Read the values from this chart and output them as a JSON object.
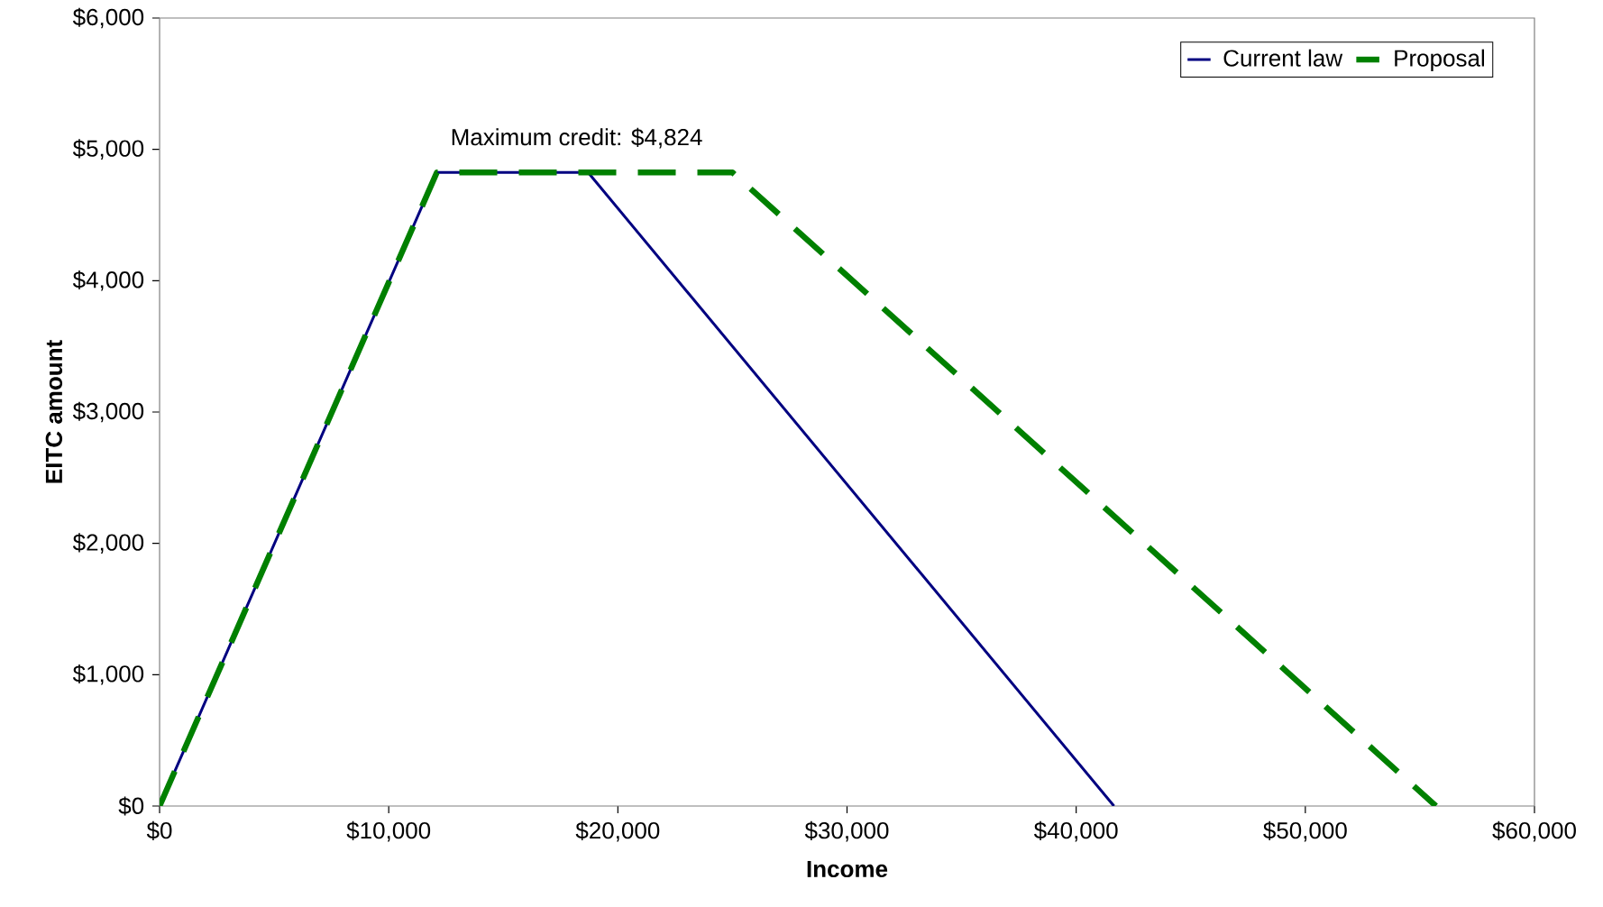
{
  "chart_data": {
    "type": "line",
    "xlabel": "Income",
    "ylabel": "EITC amount",
    "xlim": [
      0,
      60000
    ],
    "ylim": [
      0,
      6000
    ],
    "xticks": [
      {
        "value": 0,
        "label": "$0"
      },
      {
        "value": 10000,
        "label": "$10,000"
      },
      {
        "value": 20000,
        "label": "$20,000"
      },
      {
        "value": 30000,
        "label": "$30,000"
      },
      {
        "value": 40000,
        "label": "$40,000"
      },
      {
        "value": 50000,
        "label": "$50,000"
      },
      {
        "value": 60000,
        "label": "$60,000"
      }
    ],
    "yticks": [
      {
        "value": 0,
        "label": "$0"
      },
      {
        "value": 1000,
        "label": "$1,000"
      },
      {
        "value": 2000,
        "label": "$2,000"
      },
      {
        "value": 3000,
        "label": "$3,000"
      },
      {
        "value": 4000,
        "label": "$4,000"
      },
      {
        "value": 5000,
        "label": "$5,000"
      },
      {
        "value": 6000,
        "label": "$6,000"
      }
    ],
    "grid": false,
    "legend": "top right",
    "marker": "none",
    "annotations": [
      {
        "text": "Maximum credit: $4,824",
        "x": 18200,
        "y": 4824
      }
    ],
    "series": [
      {
        "name": "Current law",
        "color": "#000080",
        "line_style": "solid",
        "x": [
          0,
          12100,
          18700,
          41650
        ],
        "values": [
          0,
          4824,
          4824,
          0
        ]
      },
      {
        "name": "Proposal",
        "color": "#008000",
        "line_style": "dashed",
        "x": [
          0,
          12100,
          25000,
          55700
        ],
        "values": [
          0,
          4824,
          4824,
          0
        ]
      }
    ]
  }
}
